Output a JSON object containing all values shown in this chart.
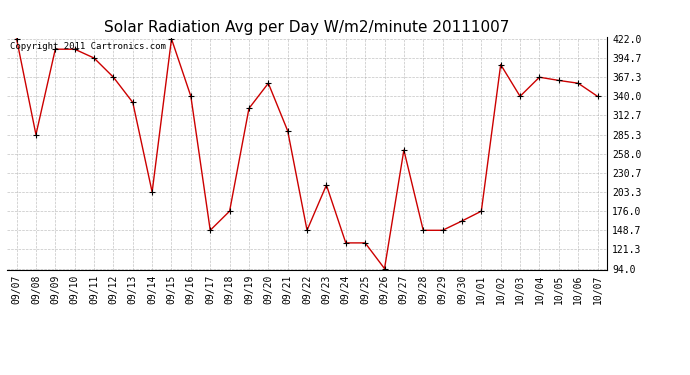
{
  "title": "Solar Radiation Avg per Day W/m2/minute 20111007",
  "copyright": "Copyright 2011 Cartronics.com",
  "x_labels": [
    "09/07",
    "09/08",
    "09/09",
    "09/10",
    "09/11",
    "09/12",
    "09/13",
    "09/14",
    "09/15",
    "09/16",
    "09/17",
    "09/18",
    "09/19",
    "09/20",
    "09/21",
    "09/22",
    "09/23",
    "09/24",
    "09/25",
    "09/26",
    "09/27",
    "09/28",
    "09/29",
    "09/30",
    "10/01",
    "10/02",
    "10/03",
    "10/04",
    "10/05",
    "10/06",
    "10/07"
  ],
  "values": [
    422.0,
    285.3,
    407.3,
    407.3,
    394.7,
    367.3,
    331.3,
    203.3,
    422.0,
    340.0,
    148.7,
    176.0,
    322.7,
    358.7,
    290.7,
    148.7,
    213.3,
    130.7,
    130.7,
    94.0,
    263.3,
    148.7,
    148.7,
    162.0,
    176.0,
    385.3,
    340.0,
    367.3,
    362.7,
    358.7,
    340.0
  ],
  "ylim_min": 94.0,
  "ylim_max": 422.0,
  "yticks": [
    94.0,
    121.3,
    148.7,
    176.0,
    203.3,
    230.7,
    258.0,
    285.3,
    312.7,
    340.0,
    367.3,
    394.7,
    422.0
  ],
  "line_color": "#cc0000",
  "marker": "+",
  "marker_color": "#000000",
  "bg_color": "#ffffff",
  "grid_color": "#aaaaaa",
  "title_fontsize": 11,
  "tick_fontsize": 7,
  "copyright_fontsize": 6.5
}
